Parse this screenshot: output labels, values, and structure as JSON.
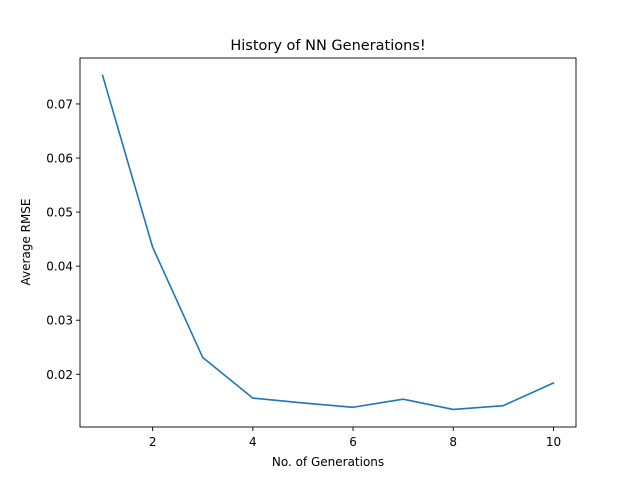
{
  "chart_data": {
    "type": "line",
    "title": "History of NN Generations!",
    "xlabel": "No. of Generations",
    "ylabel": "Average RMSE",
    "xlim": [
      0.55,
      10.45
    ],
    "ylim": [
      0.01025,
      0.0785
    ],
    "xticks": [
      2,
      4,
      6,
      8,
      10
    ],
    "xtick_labels": [
      "2",
      "4",
      "6",
      "8",
      "10"
    ],
    "yticks": [
      0.02,
      0.03,
      0.04,
      0.05,
      0.06,
      0.07
    ],
    "ytick_labels": [
      "0.02",
      "0.03",
      "0.04",
      "0.05",
      "0.06",
      "0.07"
    ],
    "grid": false,
    "series": [
      {
        "color": "#1f77b4",
        "x": [
          1,
          2,
          3,
          4,
          5,
          6,
          7,
          8,
          9,
          10
        ],
        "y": [
          0.0753,
          0.0435,
          0.0231,
          0.0156,
          0.0147,
          0.0139,
          0.0154,
          0.0135,
          0.0142,
          0.0184
        ]
      }
    ]
  }
}
